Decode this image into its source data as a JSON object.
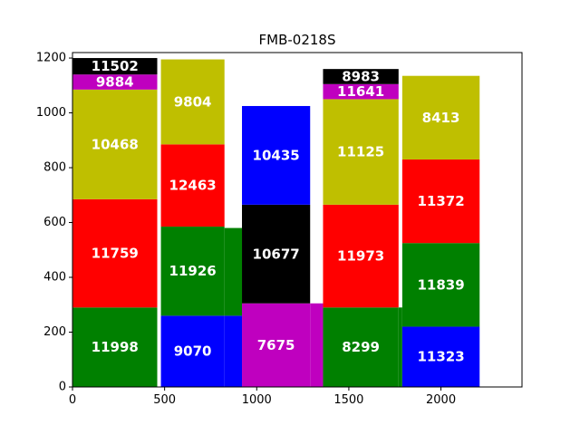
{
  "chart_data": {
    "type": "bar",
    "subtype": "stacked-variable-width",
    "title": "FMB-0218S",
    "xlabel": "",
    "ylabel": "",
    "xlim": [
      0,
      2440
    ],
    "ylim": [
      0,
      1220
    ],
    "xticks": [
      0,
      500,
      1000,
      1500,
      2000
    ],
    "yticks": [
      0,
      200,
      400,
      600,
      800,
      1000,
      1200
    ],
    "grid": false,
    "colors": {
      "green": "#008000",
      "red": "#ff0000",
      "olive": "#bfbf00",
      "magenta": "#bf00bf",
      "black": "#000000",
      "blue": "#0000ff"
    },
    "columns": [
      {
        "x0": 0,
        "x1": 460,
        "segments": [
          {
            "label": "11998",
            "y0": 0,
            "y1": 290,
            "color": "green"
          },
          {
            "label": "11759",
            "y0": 290,
            "y1": 685,
            "color": "red"
          },
          {
            "label": "10468",
            "y0": 685,
            "y1": 1085,
            "color": "olive"
          },
          {
            "label": "9884",
            "y0": 1085,
            "y1": 1140,
            "color": "magenta"
          },
          {
            "label": "11502",
            "y0": 1140,
            "y1": 1200,
            "color": "black"
          }
        ]
      },
      {
        "x0": 480,
        "x1": 825,
        "segments": [
          {
            "label": "9070",
            "y0": 0,
            "y1": 260,
            "color": "blue"
          },
          {
            "label": "11926",
            "y0": 260,
            "y1": 585,
            "color": "green"
          },
          {
            "label": "12463",
            "y0": 585,
            "y1": 885,
            "color": "red"
          },
          {
            "label": "9804",
            "y0": 885,
            "y1": 1195,
            "color": "olive"
          }
        ]
      },
      {
        "x0": 825,
        "x1": 920,
        "segments": [
          {
            "label": "",
            "y0": 0,
            "y1": 260,
            "color": "blue"
          },
          {
            "label": "",
            "y0": 260,
            "y1": 580,
            "color": "green"
          }
        ]
      },
      {
        "x0": 920,
        "x1": 1290,
        "segments": [
          {
            "label": "7675",
            "y0": 0,
            "y1": 305,
            "color": "magenta"
          },
          {
            "label": "10677",
            "y0": 305,
            "y1": 665,
            "color": "black"
          },
          {
            "label": "10435",
            "y0": 665,
            "y1": 1025,
            "color": "blue"
          }
        ]
      },
      {
        "x0": 1290,
        "x1": 1360,
        "segments": [
          {
            "label": "",
            "y0": 0,
            "y1": 305,
            "color": "magenta"
          }
        ]
      },
      {
        "x0": 1360,
        "x1": 1770,
        "segments": [
          {
            "label": "8299",
            "y0": 0,
            "y1": 290,
            "color": "green"
          },
          {
            "label": "11973",
            "y0": 290,
            "y1": 665,
            "color": "red"
          },
          {
            "label": "11125",
            "y0": 665,
            "y1": 1050,
            "color": "olive"
          },
          {
            "label": "11641",
            "y0": 1050,
            "y1": 1105,
            "color": "magenta"
          },
          {
            "label": "8983",
            "y0": 1105,
            "y1": 1160,
            "color": "black"
          }
        ]
      },
      {
        "x0": 1770,
        "x1": 1790,
        "segments": [
          {
            "label": "",
            "y0": 0,
            "y1": 290,
            "color": "green"
          }
        ]
      },
      {
        "x0": 1790,
        "x1": 2210,
        "segments": [
          {
            "label": "11323",
            "y0": 0,
            "y1": 220,
            "color": "blue"
          },
          {
            "label": "11839",
            "y0": 220,
            "y1": 525,
            "color": "green"
          },
          {
            "label": "11372",
            "y0": 525,
            "y1": 830,
            "color": "red"
          },
          {
            "label": "8413",
            "y0": 830,
            "y1": 1135,
            "color": "olive"
          }
        ]
      }
    ]
  }
}
